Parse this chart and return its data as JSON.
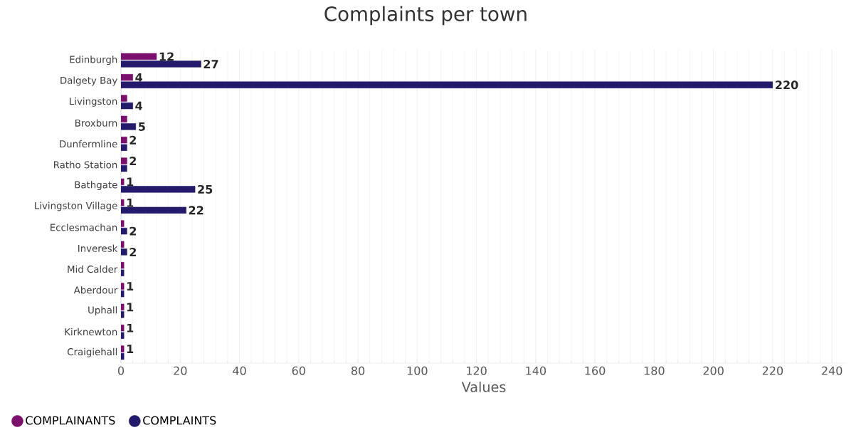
{
  "chart_data": {
    "type": "bar",
    "orientation": "horizontal",
    "title": "Complaints per town",
    "xlabel": "Values",
    "categories": [
      "Edinburgh",
      "Dalgety Bay",
      "Livingston",
      "Broxburn",
      "Dunfermline",
      "Ratho Station",
      "Bathgate",
      "Livingston Village",
      "Ecclesmachan",
      "Inveresk",
      "Mid Calder",
      "Aberdour",
      "Uphall",
      "Kirknewton",
      "Craigiehall"
    ],
    "series": [
      {
        "name": "COMPLAINANTS",
        "color": "#7b0f6e",
        "values": [
          12,
          4,
          2,
          2,
          2,
          2,
          1,
          1,
          1,
          1,
          1,
          1,
          1,
          1,
          1
        ],
        "value_labels": [
          "12",
          "4",
          null,
          null,
          "2",
          "2",
          "1",
          "1",
          null,
          null,
          null,
          "1",
          "1",
          "1",
          "1"
        ]
      },
      {
        "name": "COMPLAINTS",
        "color": "#231a6b",
        "values": [
          27,
          220,
          4,
          5,
          2,
          2,
          25,
          22,
          2,
          2,
          1,
          1,
          1,
          1,
          1
        ],
        "value_labels": [
          "27",
          "220",
          "4",
          "5",
          null,
          null,
          "25",
          "22",
          "2",
          "2",
          null,
          null,
          null,
          null,
          null
        ]
      }
    ],
    "xlim": [
      0,
      245
    ],
    "xticks": [
      0,
      20,
      40,
      60,
      80,
      100,
      120,
      140,
      160,
      180,
      200,
      220,
      240
    ],
    "grid": "x",
    "legend": "bottom left"
  }
}
